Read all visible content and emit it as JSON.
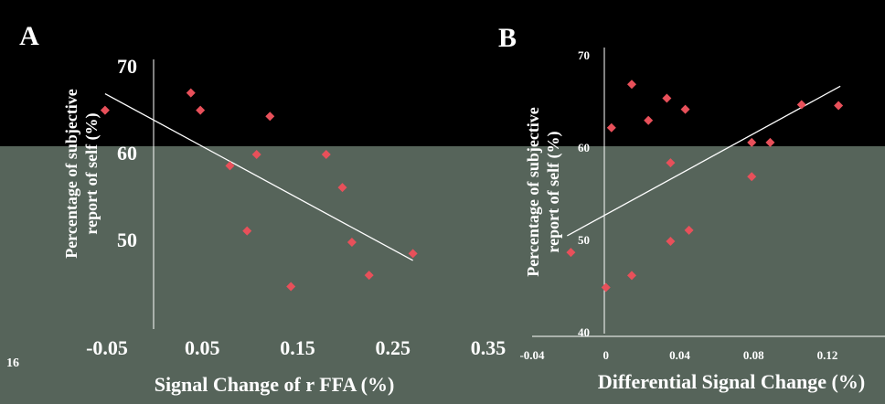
{
  "chart_data": [
    {
      "type": "scatter",
      "panel_label": "A",
      "annotation": "16",
      "xlabel": "Signal Change of r FFA (%)",
      "ylabel": [
        "Percentage of subjective",
        "report of self (%)"
      ],
      "xlim": [
        -0.05,
        0.35
      ],
      "ylim": [
        40,
        70
      ],
      "xticks": [
        -0.05,
        0.05,
        0.15,
        0.25,
        0.35
      ],
      "yticks": [
        70,
        60,
        50
      ],
      "color": "#e8505a",
      "x": [
        -0.052,
        0.038,
        0.048,
        0.121,
        0.079,
        0.107,
        0.097,
        0.18,
        0.197,
        0.207,
        0.143,
        0.225,
        0.271
      ],
      "values": [
        65.2,
        67.2,
        65.2,
        64.5,
        58.8,
        60.1,
        51.3,
        60.1,
        56.3,
        50,
        44.9,
        46.2,
        48.7
      ],
      "trend": {
        "x": [
          -0.052,
          0.271
        ],
        "values": [
          67.1,
          47.9
        ]
      }
    },
    {
      "type": "scatter",
      "panel_label": "B",
      "xlabel": "Differential Signal Change (%)",
      "ylabel": [
        "Percentage of subjective",
        "report of self (%)"
      ],
      "xlim": [
        -0.04,
        0.12
      ],
      "ylim": [
        40,
        70
      ],
      "xticks": [
        -0.04,
        0,
        0.04,
        0.08,
        0.12
      ],
      "yticks": [
        70,
        60,
        50,
        40
      ],
      "color": "#e8505a",
      "x": [
        -0.019,
        0,
        0.014,
        0.014,
        0.003,
        0.023,
        0.033,
        0.043,
        0.035,
        0.035,
        0.045,
        0.079,
        0.089,
        0.079,
        0.106,
        0.126
      ],
      "values": [
        48.8,
        45,
        46.3,
        67,
        62.3,
        63.1,
        65.5,
        64.3,
        58.5,
        50,
        51.2,
        60.7,
        60.7,
        57,
        64.8,
        64.7
      ],
      "trend": {
        "x": [
          -0.021,
          0.127
        ],
        "values": [
          50.6,
          66.8
        ]
      }
    }
  ]
}
